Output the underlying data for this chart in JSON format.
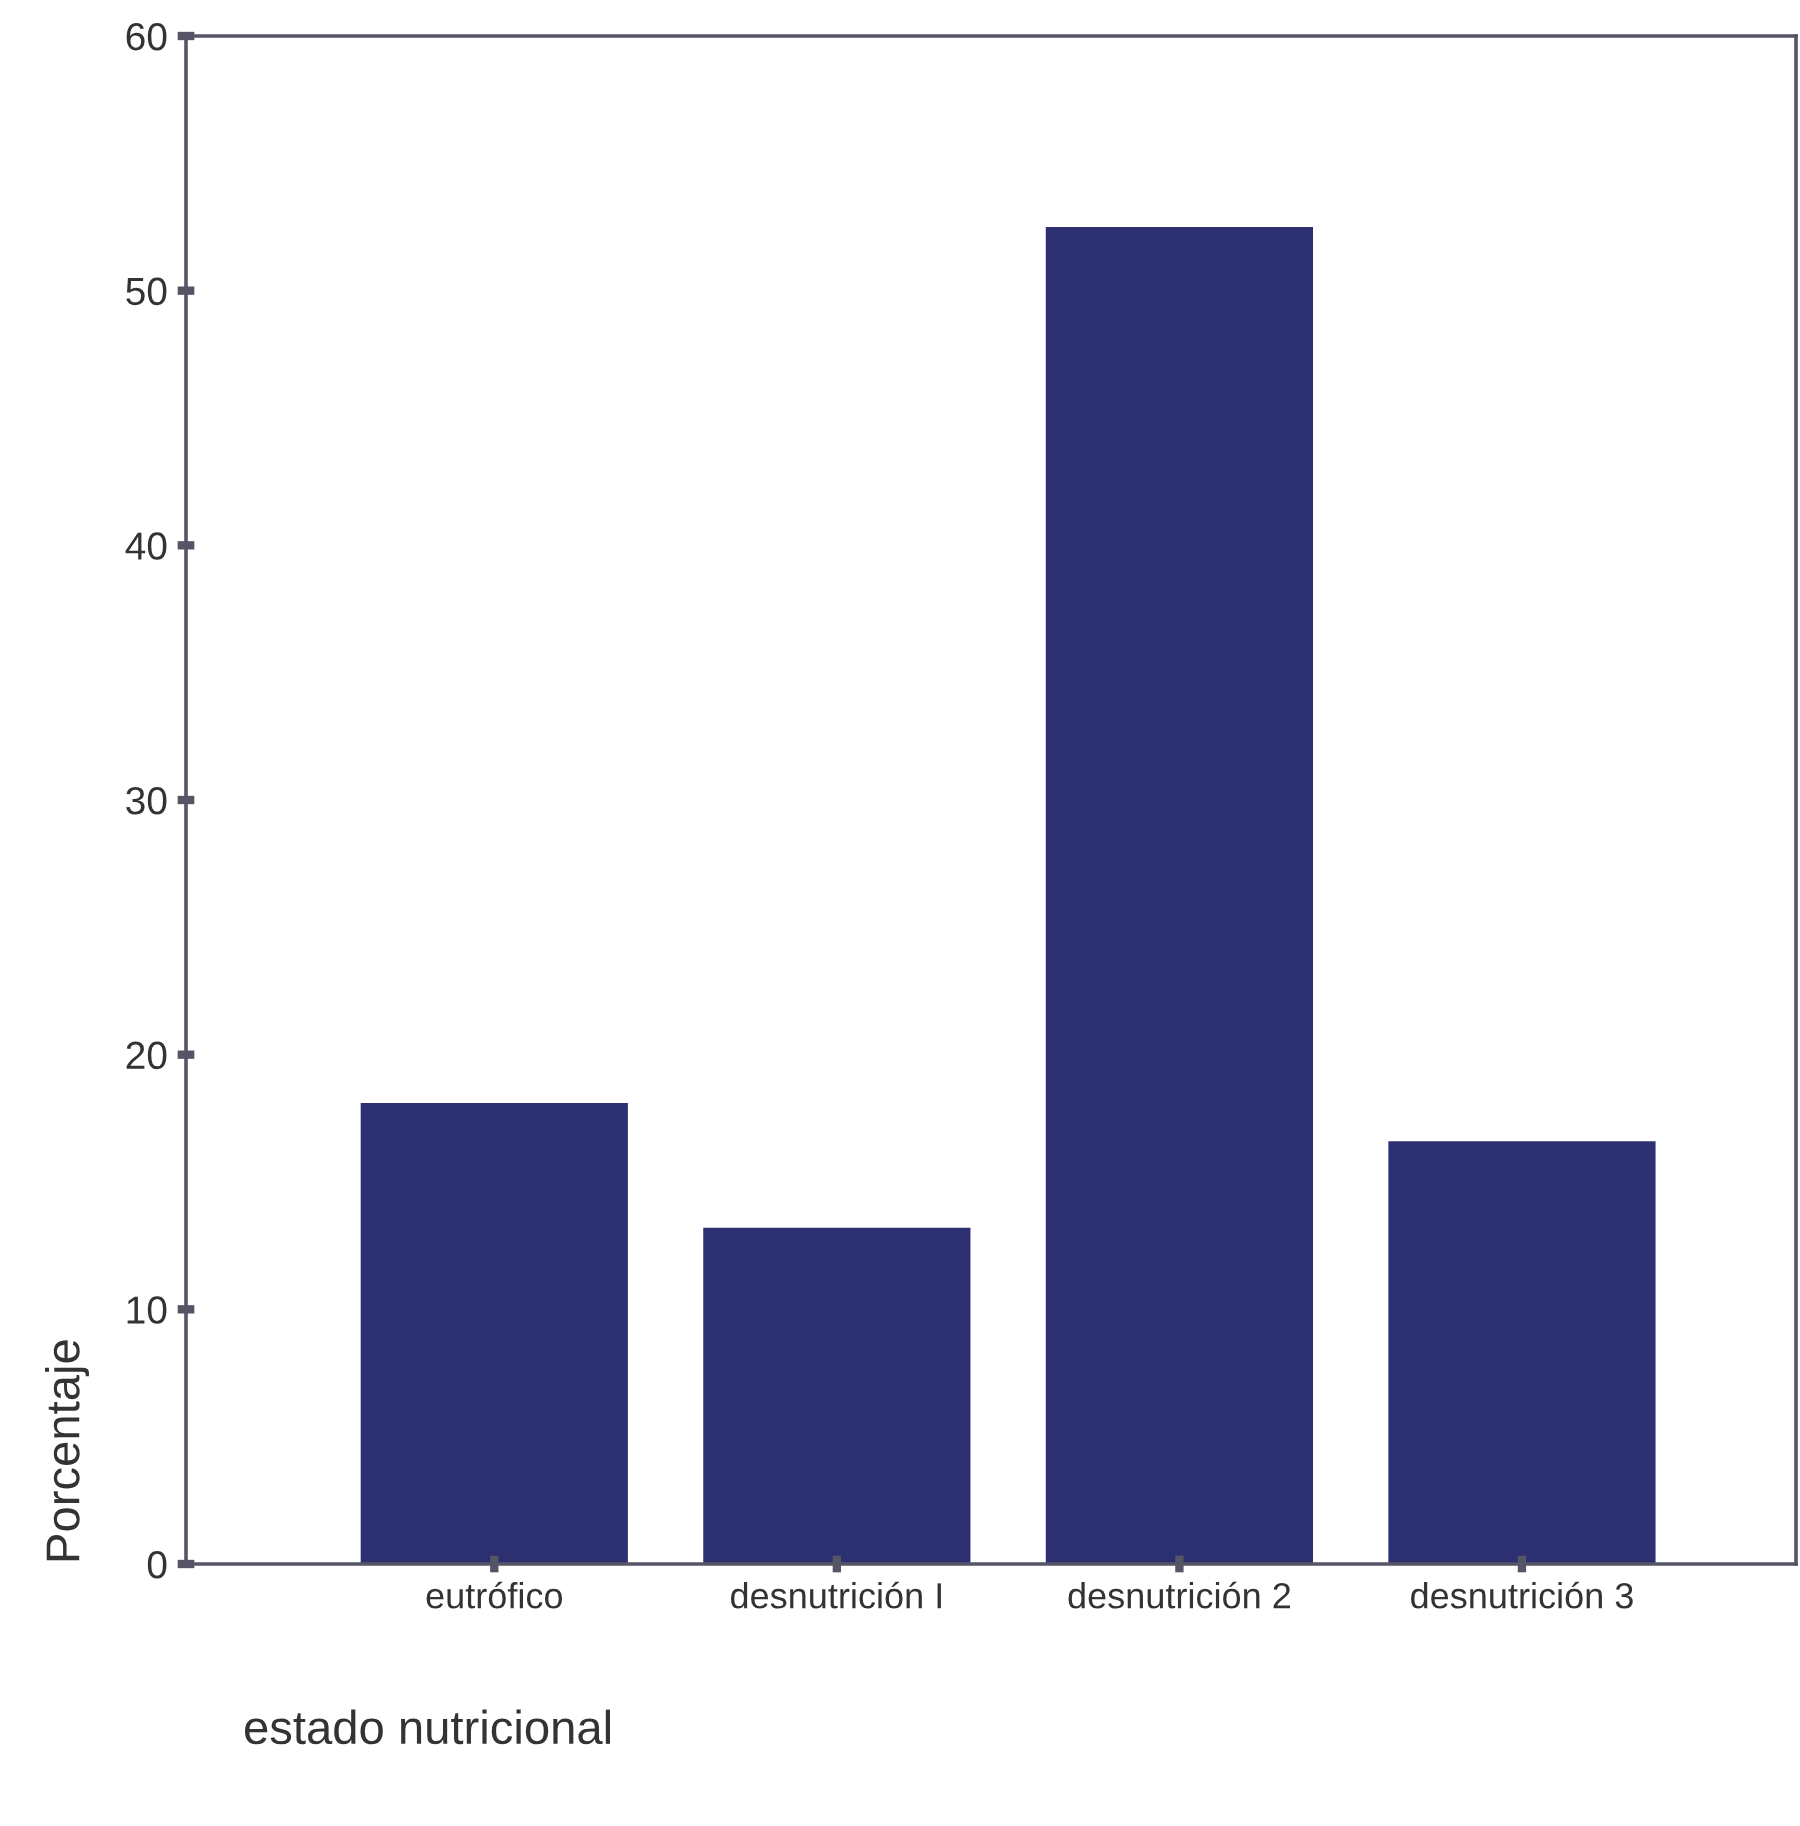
{
  "chart_data": {
    "type": "bar",
    "xlabel": "estado nutricional",
    "ylabel": "Porcentaje",
    "categories": [
      "eutrófico",
      "desnutrición I",
      "desnutrición 2",
      "desnutrición 3"
    ],
    "values": [
      18.1,
      13.2,
      52.5,
      16.6
    ],
    "color": "#2c3070",
    "ylim": [
      0,
      60
    ],
    "yticks": [
      0,
      10,
      20,
      30,
      40,
      50,
      60
    ],
    "grid": false,
    "legend": false
  }
}
